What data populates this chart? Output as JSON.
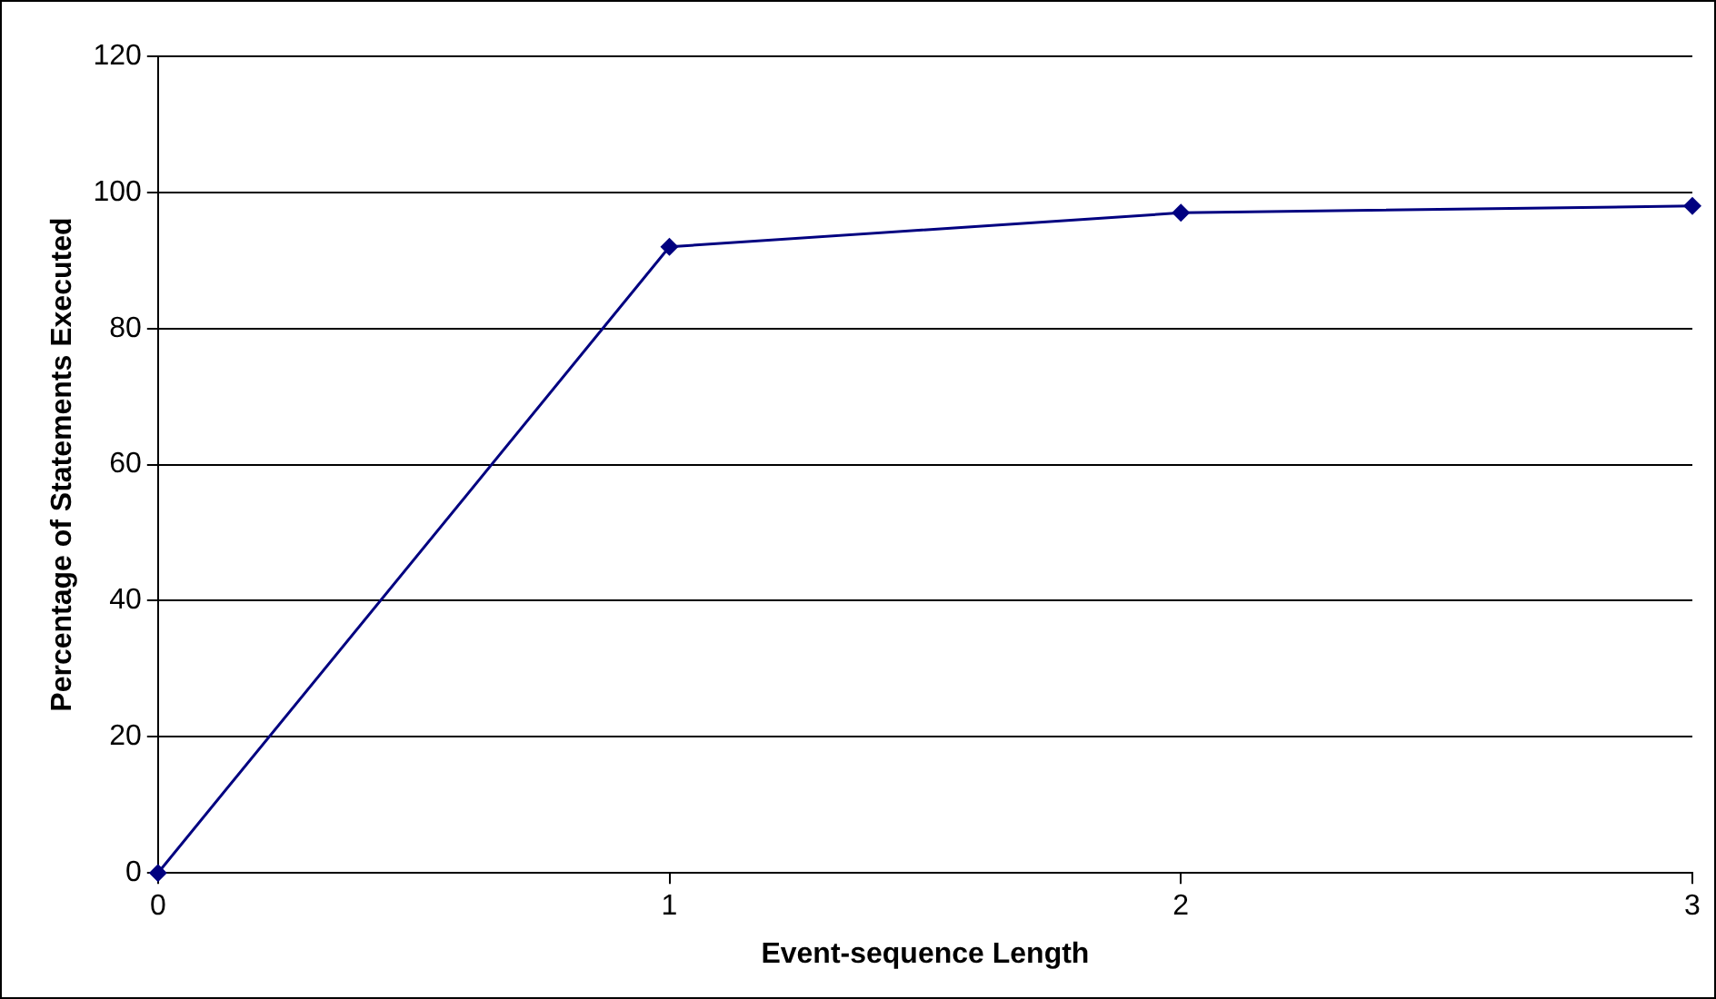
{
  "chart_data": {
    "type": "line",
    "xlabel": "Event-sequence Length",
    "ylabel": "Percentage of Statements Executed",
    "x": [
      0,
      1,
      2,
      3
    ],
    "series": [
      {
        "color": "#000080",
        "values": [
          0,
          92,
          97,
          98
        ]
      }
    ],
    "xlim": [
      0,
      3
    ],
    "xticks": [
      0,
      1,
      2,
      3
    ],
    "ylim": [
      0,
      120
    ],
    "yticks": [
      0,
      20,
      40,
      60,
      80,
      100,
      120
    ],
    "grid": "y",
    "legend": false,
    "marker": "diamond",
    "line_style": "solid"
  }
}
